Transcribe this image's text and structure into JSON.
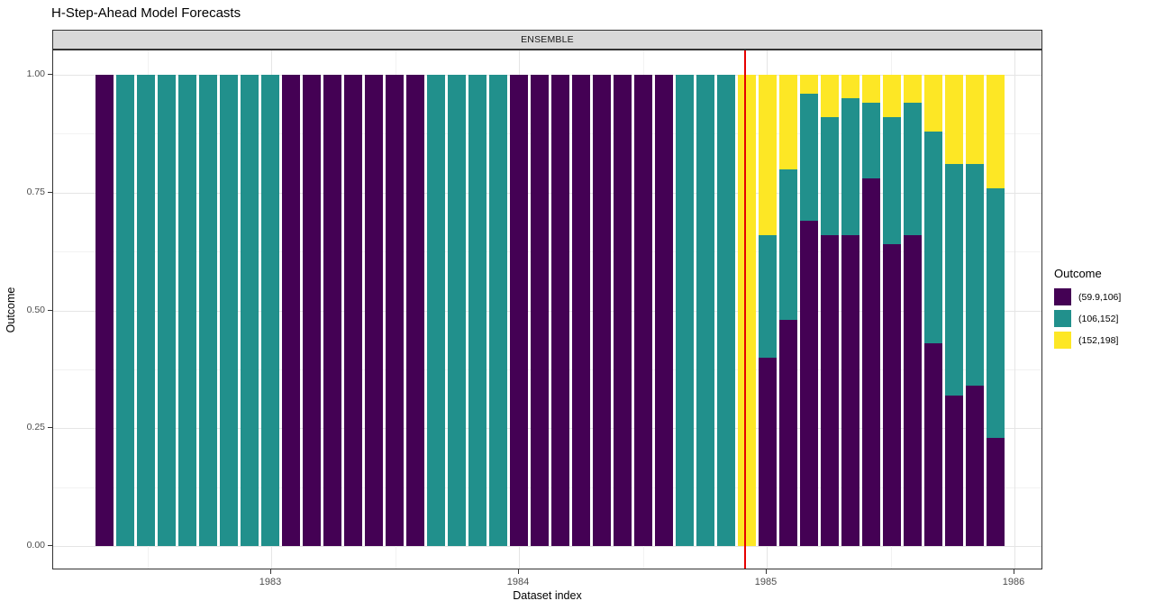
{
  "title": "H-Step-Ahead Model Forecasts",
  "facet_strip": "ENSEMBLE",
  "chart_data": {
    "type": "bar",
    "subtype": "stacked-proportion-monthly",
    "title": "H-Step-Ahead Model Forecasts",
    "facet_label": "ENSEMBLE",
    "xlabel": "Dataset index",
    "ylabel": "Outcome",
    "x_tick_years": [
      1983,
      1984,
      1985,
      1986
    ],
    "y_ticks": [
      {
        "value": 1.0,
        "label": "1.00"
      },
      {
        "value": 0.75,
        "label": "0.75"
      },
      {
        "value": 0.5,
        "label": "0.50"
      },
      {
        "value": 0.25,
        "label": "0.25"
      },
      {
        "value": 0.0,
        "label": "0.00"
      }
    ],
    "ylim": [
      0,
      1
    ],
    "grid": "major-and-minor",
    "x_start_month": "1982-05",
    "x_frequency": "monthly",
    "vline": {
      "x_year": 1984.91,
      "color": "#e60000"
    },
    "legend": {
      "title": "Outcome",
      "position": "right",
      "entries": [
        {
          "label": "(59.9,106]",
          "color": "#440154"
        },
        {
          "label": "(106,152]",
          "color": "#21908c"
        },
        {
          "label": "(152,198]",
          "color": "#fde725"
        }
      ]
    },
    "series_order_bottom_to_top": [
      "(59.9,106]",
      "(106,152]",
      "(152,198]"
    ],
    "bars": [
      [
        1,
        0,
        0
      ],
      [
        0,
        1,
        0
      ],
      [
        0,
        1,
        0
      ],
      [
        0,
        1,
        0
      ],
      [
        0,
        1,
        0
      ],
      [
        0,
        1,
        0
      ],
      [
        0,
        1,
        0
      ],
      [
        0,
        1,
        0
      ],
      [
        0,
        1,
        0
      ],
      [
        1,
        0,
        0
      ],
      [
        1,
        0,
        0
      ],
      [
        1,
        0,
        0
      ],
      [
        1,
        0,
        0
      ],
      [
        1,
        0,
        0
      ],
      [
        1,
        0,
        0
      ],
      [
        1,
        0,
        0
      ],
      [
        0,
        1,
        0
      ],
      [
        0,
        1,
        0
      ],
      [
        0,
        1,
        0
      ],
      [
        0,
        1,
        0
      ],
      [
        1,
        0,
        0
      ],
      [
        1,
        0,
        0
      ],
      [
        1,
        0,
        0
      ],
      [
        1,
        0,
        0
      ],
      [
        1,
        0,
        0
      ],
      [
        1,
        0,
        0
      ],
      [
        1,
        0,
        0
      ],
      [
        1,
        0,
        0
      ],
      [
        0,
        1,
        0
      ],
      [
        0,
        1,
        0
      ],
      [
        0,
        1,
        0
      ],
      [
        0,
        0,
        1
      ],
      [
        0.4,
        0.26,
        0.34
      ],
      [
        0.48,
        0.32,
        0.2
      ],
      [
        0.69,
        0.27,
        0.04
      ],
      [
        0.66,
        0.25,
        0.09
      ],
      [
        0.66,
        0.29,
        0.05
      ],
      [
        0.78,
        0.16,
        0.06
      ],
      [
        0.64,
        0.27,
        0.09
      ],
      [
        0.66,
        0.28,
        0.06
      ],
      [
        0.43,
        0.45,
        0.12
      ],
      [
        0.32,
        0.49,
        0.19
      ],
      [
        0.34,
        0.47,
        0.19
      ],
      [
        0.23,
        0.53,
        0.24
      ]
    ]
  }
}
